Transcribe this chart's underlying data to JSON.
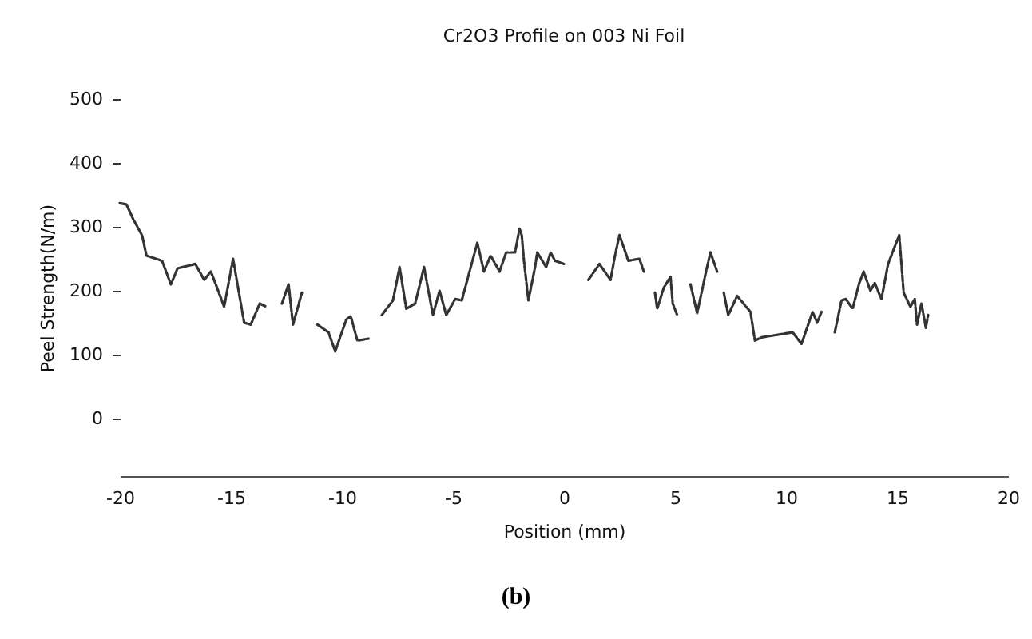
{
  "chart_data": {
    "type": "line",
    "title": "Cr2O3 Profile on  003 Ni Foil",
    "xlabel": "Position   (mm)",
    "ylabel": "Peel Strength(N/m)",
    "annotations": [
      "(b)"
    ],
    "x": [
      -20.0,
      -19.7,
      -19.4,
      -19.0,
      -18.8,
      -18.1,
      -17.7,
      -17.4,
      -16.6,
      -16.2,
      -15.9,
      -15.7,
      -15.3,
      -14.9,
      -14.4,
      -14.1,
      -13.7,
      -13.4,
      -13.0,
      -12.7,
      -12.4,
      -12.2,
      -11.8,
      -11.4,
      -11.1,
      -10.6,
      -10.3,
      -9.8,
      -9.6,
      -9.3,
      -8.8,
      -8.5,
      -8.2,
      -7.7,
      -7.4,
      -7.1,
      -6.7,
      -6.3,
      -5.9,
      -5.6,
      -5.3,
      -4.9,
      -4.6,
      -3.9,
      -3.6,
      -3.3,
      -2.9,
      -2.6,
      -2.2,
      -2.0,
      -1.9,
      -1.8,
      -1.6,
      -1.3,
      -1.2,
      -0.8,
      -0.6,
      -0.4,
      0.0,
      0.5,
      1.1,
      1.6,
      2.1,
      2.3,
      2.5,
      2.9,
      3.4,
      3.6,
      3.8,
      4.1,
      4.2,
      4.5,
      4.8,
      4.9,
      5.1,
      5.4,
      5.7,
      6.0,
      6.4,
      6.6,
      6.9,
      7.0,
      7.2,
      7.4,
      7.8,
      8.4,
      8.6,
      8.9,
      10.3,
      10.7,
      11.0,
      11.2,
      11.4,
      11.6,
      11.9,
      12.2,
      12.5,
      12.7,
      13.0,
      13.3,
      13.5,
      13.8,
      14.0,
      14.3,
      14.6,
      15.1,
      15.3,
      15.6,
      15.8,
      15.9,
      16.1,
      16.3,
      16.4
    ],
    "series": [
      {
        "color": "#333333",
        "values": [
          337,
          335,
          312,
          287,
          255,
          247,
          210,
          235,
          242,
          217,
          230,
          212,
          175,
          250,
          150,
          147,
          180,
          175,
          null,
          180,
          210,
          147,
          197,
          null,
          147,
          135,
          105,
          155,
          160,
          122,
          125,
          null,
          162,
          185,
          237,
          172,
          180,
          237,
          162,
          200,
          162,
          187,
          185,
          275,
          230,
          255,
          230,
          260,
          260,
          297,
          287,
          247,
          185,
          237,
          260,
          237,
          260,
          247,
          242,
          null,
          217,
          242,
          217,
          255,
          287,
          247,
          250,
          230,
          null,
          197,
          172,
          205,
          222,
          180,
          162,
          null,
          210,
          165,
          230,
          260,
          230,
          null,
          197,
          162,
          192,
          167,
          122,
          127,
          135,
          117,
          147,
          167,
          150,
          167,
          null,
          135,
          185,
          187,
          172,
          212,
          230,
          200,
          212,
          187,
          242,
          287,
          197,
          175,
          187,
          147,
          180,
          142,
          162
        ]
      }
    ],
    "xlim": [
      -20,
      20
    ],
    "xticks": [
      -20,
      -15,
      -10,
      -5,
      0,
      5,
      10,
      15,
      20
    ],
    "ylim": [
      -90,
      500
    ],
    "yticks": [
      0,
      100,
      200,
      300,
      400,
      500
    ],
    "line_style": "dashed",
    "marker": "none",
    "grid": false,
    "legend": false
  }
}
